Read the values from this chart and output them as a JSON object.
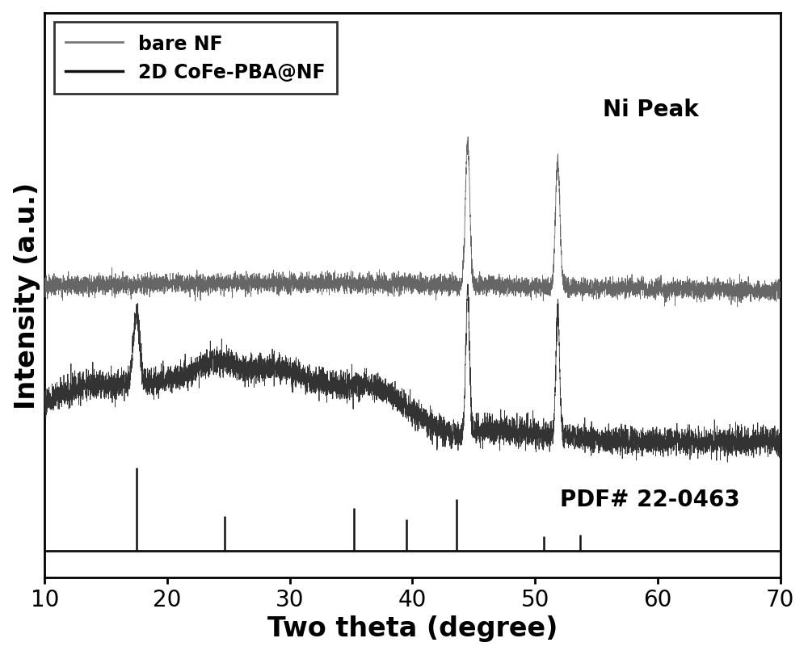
{
  "xlim": [
    10,
    70
  ],
  "xlabel": "Two theta (degree)",
  "ylabel": "Intensity (a.u.)",
  "line1_label": "bare NF",
  "line2_label": "2D CoFe-PBA@NF",
  "ni_peak_label": "Ni Peak",
  "pdf_label": "PDF# 22-0463",
  "pdf_peaks": [
    17.5,
    24.7,
    35.2,
    39.5,
    43.6,
    50.7,
    53.7
  ],
  "pdf_peak_heights": [
    1.0,
    0.42,
    0.52,
    0.38,
    0.62,
    0.18,
    0.2
  ],
  "ni_peaks_2theta": [
    44.5,
    51.8
  ],
  "tick_fontsize": 20,
  "label_fontsize": 24,
  "legend_fontsize": 17,
  "annotation_fontsize": 20
}
